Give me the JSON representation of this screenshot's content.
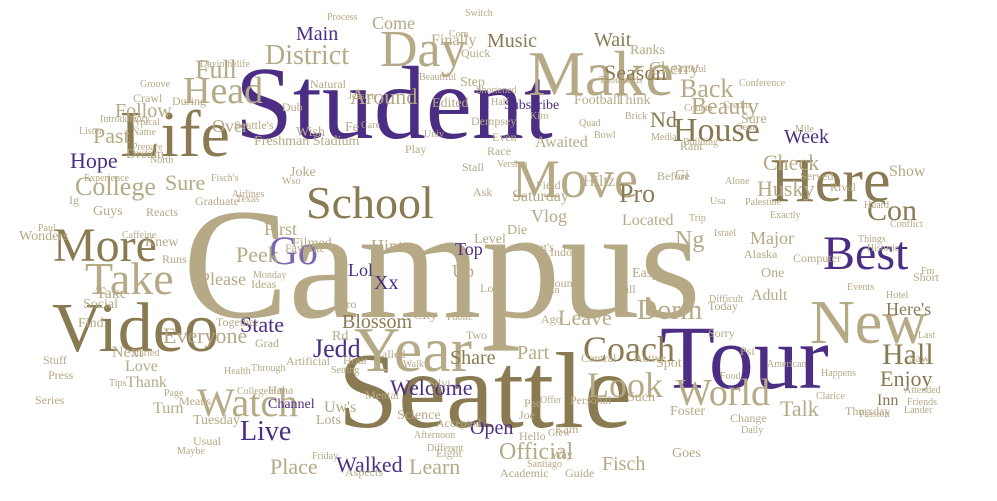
{
  "colors": {
    "gold": "#b6a985",
    "dark_gold": "#8a7a52",
    "purple": "#4b2e83",
    "lavender": "#7b68b0",
    "gray": "#9b9b9b"
  },
  "words": [
    "Campus",
    "Seattle",
    "Student",
    "Tour",
    "Year",
    "Video",
    "Life",
    "New",
    "Here",
    "Make",
    "Day",
    "Move",
    "School",
    "Best",
    "More",
    "Take",
    "Go",
    "Head",
    "District",
    "House",
    "Full",
    "Watch",
    "World",
    "Look",
    "Coach",
    "Dorm",
    "Live",
    "Jedd",
    "Hall",
    "Con",
    "Pro",
    "Beauty",
    "Back",
    "Husky",
    "Check",
    "Week",
    "Enjoy",
    "Welcome",
    "Walked",
    "Official",
    "Learn",
    "Open",
    "Fisch",
    "Talk",
    "Place",
    "Leave",
    "Share",
    "Part",
    "Please",
    "Everyone",
    "State",
    "Blossom",
    "Around",
    "Main",
    "Music",
    "Wait",
    "Season",
    "Cherry",
    "Follow",
    "Past",
    "College",
    "Sure",
    "Hope",
    "Over",
    "Peek",
    "First",
    "Hint",
    "Lol",
    "Xx",
    "Up",
    "Top",
    "Ng",
    "Located",
    "Take",
    "Saturday",
    "Hiltz",
    "Nd",
    "Awaited",
    "Filmed",
    "Joke",
    "Subscribe",
    "Football",
    "Think",
    "Ranks",
    "Finally",
    "Come",
    "Step",
    "Edited",
    "Rd",
    "Inn",
    "Here's",
    "Adult",
    "One",
    "Major",
    "Show",
    "Uw's",
    "Lots",
    "Channel",
    "Tuesday",
    "Usual",
    "Turn",
    "Thank",
    "Love",
    "Next",
    "Find",
    "Social",
    "Guys",
    "Knew",
    "Favorite",
    "Ideas",
    "Intro",
    "City",
    "Level",
    "Long",
    "Easy",
    "Sorry",
    "Today",
    "Fall",
    "Indoor",
    "Found",
    "Vlog",
    "Die",
    "Let's",
    "Ask",
    "Version",
    "Field",
    "Before",
    "Gi",
    "Such",
    "Foster",
    "Academic",
    "Science",
    "Personal",
    "Joe",
    "Kam",
    "Way",
    "Pac",
    "Walk",
    "Hour",
    "Called",
    "Artificial",
    "Grad",
    "Mental",
    "Two",
    "Public",
    "Ago",
    "Rn",
    "Active",
    "Central",
    "Spot",
    "Psi",
    "Saw",
    "Last",
    "Short",
    "Hotel",
    "Friends",
    "Passion",
    "Change",
    "Goes",
    "Offer",
    "Half",
    "Even",
    "Sure",
    "Wish",
    "Fe",
    "Play",
    "Stall",
    "Race",
    "Univ",
    "Care",
    "Dub",
    "Natural",
    "Dream",
    "Crawl",
    "Typical",
    "Name",
    "Prepare",
    "During",
    "Groove",
    "Reacts",
    "Graduate",
    "Runs",
    "Together",
    "Stuff",
    "Press",
    "Series",
    "Wonders",
    "Ig",
    "Paul",
    "Means",
    "Haha",
    "Through",
    "Health",
    "Started",
    "Tips",
    "Page",
    "Maybe",
    "Friday",
    "Aspects",
    "Different",
    "Afternoon",
    "Guide",
    "Shortened",
    "Quick",
    "Com",
    "Process",
    "Thousands",
    "Building",
    "Media",
    "Counts",
    "Credits",
    "Served",
    "Rival",
    "Things",
    "Historic",
    "Conflict",
    "Events",
    "Computer",
    "Alaska",
    "Exactly",
    "Israel",
    "Palestine",
    "Usa",
    "Alone",
    "Trip",
    "Difficult",
    "Food",
    "American",
    "Daily",
    "Clarice",
    "Attended",
    "Happens",
    "Grateful",
    "Brick",
    "Rant",
    "Freshman Stadium",
    "Seattle's",
    "Fisch's",
    "Airlines",
    "Experience",
    "Conference",
    "Semi",
    "Mile",
    "Listen",
    "Wso",
    "North",
    "Jessica",
    "Dempsey",
    "Kiro",
    "Quad",
    "Bowl",
    "Switch",
    "Beautiful",
    "Dayinthelife",
    "Introductory",
    "Thursday",
    "Lander",
    "Huard",
    "Texas",
    "Caffeine",
    "Accepted",
    "Hello",
    "Eight",
    "Silvi",
    "Grew",
    "Fm",
    "Santiago",
    "Collegelife",
    "Setting",
    "Monday"
  ]
}
